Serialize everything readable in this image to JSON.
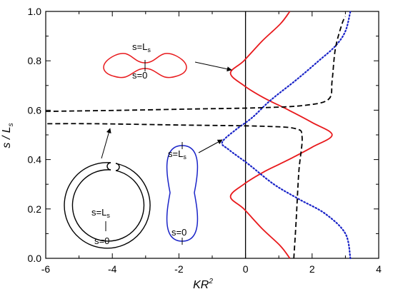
{
  "chart_data": {
    "type": "line",
    "xlabel": "KR²",
    "ylabel": "s / L_s",
    "xlim": [
      -6,
      4
    ],
    "ylim": [
      0.0,
      1.0
    ],
    "x_ticks": [
      "-6",
      "-4",
      "-2",
      "0",
      "2",
      "4"
    ],
    "y_ticks": [
      "0.0",
      "0.2",
      "0.4",
      "0.6",
      "0.8",
      "1.0"
    ],
    "grid": false,
    "reference_lines": [
      {
        "axis": "x",
        "value": 0
      }
    ],
    "series": [
      {
        "color": "#e8191c",
        "style": "solid",
        "points": [
          [
            1.33,
            0.0
          ],
          [
            1.05,
            0.05
          ],
          [
            0.5,
            0.12
          ],
          [
            -0.05,
            0.2
          ],
          [
            -0.45,
            0.25
          ],
          [
            -0.05,
            0.3
          ],
          [
            0.55,
            0.35
          ],
          [
            1.3,
            0.4
          ],
          [
            2.0,
            0.45
          ],
          [
            2.6,
            0.5
          ],
          [
            2.0,
            0.55
          ],
          [
            1.3,
            0.6
          ],
          [
            0.55,
            0.65
          ],
          [
            -0.05,
            0.7
          ],
          [
            -0.45,
            0.75
          ],
          [
            -0.05,
            0.8
          ],
          [
            0.5,
            0.88
          ],
          [
            1.05,
            0.95
          ],
          [
            1.33,
            1.0
          ]
        ]
      },
      {
        "color": "#1a24c8",
        "style": "dotted",
        "points": [
          [
            3.15,
            0.0
          ],
          [
            3.0,
            0.1
          ],
          [
            2.4,
            0.18
          ],
          [
            1.6,
            0.24
          ],
          [
            0.85,
            0.3
          ],
          [
            0.1,
            0.38
          ],
          [
            -0.5,
            0.44
          ],
          [
            -0.7,
            0.47
          ],
          [
            -0.3,
            0.52
          ],
          [
            0.2,
            0.57
          ],
          [
            0.75,
            0.64
          ],
          [
            1.5,
            0.72
          ],
          [
            2.2,
            0.8
          ],
          [
            2.7,
            0.86
          ],
          [
            3.0,
            0.92
          ],
          [
            3.15,
            1.0
          ]
        ]
      },
      {
        "color": "#000000",
        "style": "dashed",
        "points": [
          [
            1.45,
            0.0
          ],
          [
            1.52,
            0.15
          ],
          [
            1.6,
            0.35
          ],
          [
            1.7,
            0.49
          ],
          [
            1.5,
            0.525
          ],
          [
            0.5,
            0.535
          ],
          [
            -2.0,
            0.54
          ],
          [
            -4.5,
            0.545
          ],
          [
            -6.0,
            0.545
          ]
        ]
      },
      {
        "color": "#000000",
        "style": "dashed",
        "points": [
          [
            -6.0,
            0.595
          ],
          [
            -3.5,
            0.6
          ],
          [
            -1.5,
            0.605
          ],
          [
            0.5,
            0.61
          ],
          [
            1.8,
            0.62
          ],
          [
            2.5,
            0.645
          ],
          [
            2.6,
            0.72
          ],
          [
            2.7,
            0.85
          ],
          [
            2.9,
            0.95
          ],
          [
            3.0,
            0.98
          ]
        ]
      }
    ],
    "insets": [
      {
        "name": "dumbbell-shape",
        "color": "#e8191c",
        "labels": [
          "s=L_s",
          "s=0"
        ]
      },
      {
        "name": "ring-shape",
        "color": "#000000",
        "labels": [
          "s=L_s",
          "s=0"
        ]
      },
      {
        "name": "capsule-shape",
        "color": "#1a24c8",
        "labels": [
          "s=L_s",
          "s=0"
        ]
      }
    ],
    "arrows": [
      {
        "from": "dumbbell-shape",
        "to": [
          -0.25,
          0.76
        ]
      },
      {
        "from": "ring-shape",
        "to": [
          -4.3,
          0.525
        ]
      },
      {
        "from": "capsule-shape",
        "to": [
          -0.75,
          0.475
        ]
      }
    ]
  }
}
